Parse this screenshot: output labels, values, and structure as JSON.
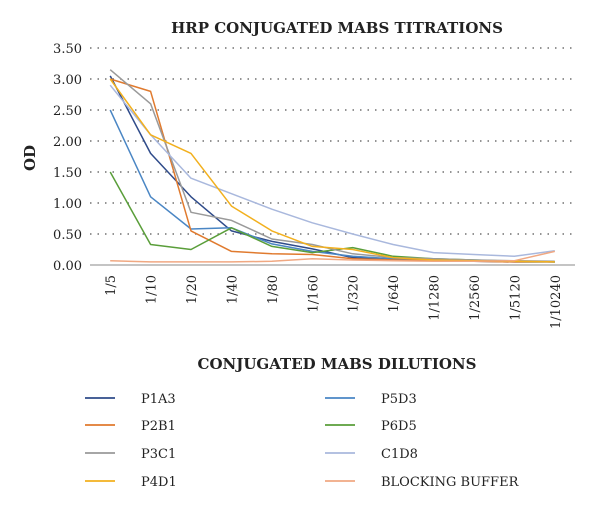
{
  "chart_data": {
    "type": "line",
    "title": "HRP CONJUGATED MABS TITRATIONS",
    "xlabel": "CONJUGATED MABS DILUTIONS",
    "ylabel": "OD",
    "categories": [
      "1/5",
      "1/10",
      "1/20",
      "1/40",
      "1/80",
      "1/160",
      "1/320",
      "1/640",
      "1/1280",
      "1/2560",
      "1/5120",
      "1/10240"
    ],
    "ylim": [
      0,
      3.5
    ],
    "yticks": [
      "0.00",
      "0.50",
      "1.00",
      "1.50",
      "2.00",
      "2.50",
      "3.00",
      "3.50"
    ],
    "grid": "horizontal-dotted",
    "legend_position": "bottom",
    "series": [
      {
        "name": "P1A3",
        "color": "#2f4b8a",
        "values": [
          3.05,
          1.8,
          1.1,
          0.55,
          0.38,
          0.26,
          0.12,
          0.09,
          0.07,
          0.06,
          0.05,
          0.05
        ]
      },
      {
        "name": "P5D3",
        "color": "#4a86c4",
        "values": [
          2.5,
          1.1,
          0.58,
          0.6,
          0.34,
          0.22,
          0.14,
          0.1,
          0.08,
          0.07,
          0.06,
          0.05
        ]
      },
      {
        "name": "P2B1",
        "color": "#e07a2e",
        "values": [
          3.0,
          2.8,
          0.55,
          0.22,
          0.18,
          0.17,
          0.1,
          0.08,
          0.07,
          0.06,
          0.05,
          0.05
        ]
      },
      {
        "name": "P6D5",
        "color": "#5a9e3a",
        "values": [
          1.5,
          0.33,
          0.25,
          0.6,
          0.3,
          0.2,
          0.28,
          0.14,
          0.1,
          0.08,
          0.06,
          0.05
        ]
      },
      {
        "name": "P3C1",
        "color": "#9a9a9a",
        "values": [
          3.15,
          2.6,
          0.85,
          0.72,
          0.42,
          0.33,
          0.18,
          0.12,
          0.1,
          0.08,
          0.07,
          0.06
        ]
      },
      {
        "name": "C1D8",
        "color": "#a9b8dd",
        "values": [
          2.9,
          2.1,
          1.4,
          1.15,
          0.9,
          0.68,
          0.5,
          0.33,
          0.2,
          0.17,
          0.14,
          0.23
        ]
      },
      {
        "name": "P4D1",
        "color": "#f2b01e",
        "values": [
          3.0,
          2.1,
          1.8,
          0.95,
          0.55,
          0.3,
          0.25,
          0.12,
          0.08,
          0.07,
          0.06,
          0.05
        ]
      },
      {
        "name": "BLOCKING BUFFER",
        "color": "#f0a882",
        "values": [
          0.07,
          0.05,
          0.05,
          0.05,
          0.06,
          0.1,
          0.08,
          0.07,
          0.06,
          0.06,
          0.07,
          0.22
        ]
      }
    ]
  }
}
